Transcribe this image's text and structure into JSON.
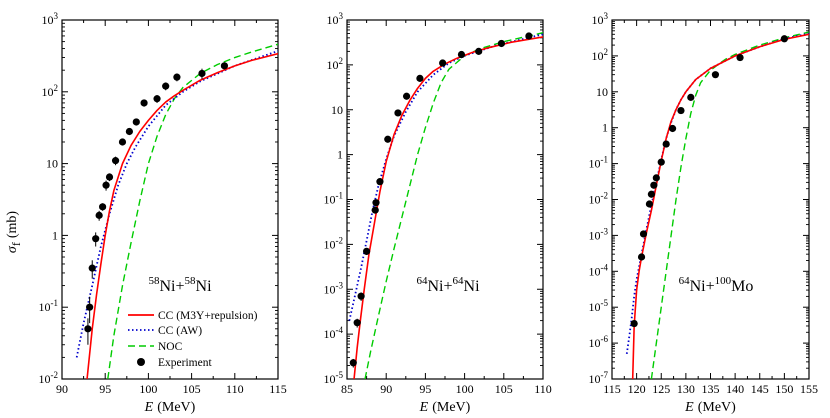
{
  "figure": {
    "ylabel_symbol": "σ",
    "ylabel_sub": "f",
    "ylabel_unit": "(mb)",
    "legend": {
      "placement": "lower-right of panel 1",
      "entries": [
        {
          "key": "cc_m3y",
          "label": "CC (M3Y+repulsion)",
          "color": "#ff0000",
          "style": "solid"
        },
        {
          "key": "cc_aw",
          "label": "CC (AW)",
          "color": "#0000cc",
          "style": "dotted"
        },
        {
          "key": "noc",
          "label": "NOC",
          "color": "#00cc00",
          "style": "dashed"
        },
        {
          "key": "exp",
          "label": "Experiment",
          "color": "#000000",
          "style": "marker"
        }
      ]
    }
  },
  "chart_data": [
    {
      "type": "line",
      "panel": 1,
      "system": {
        "a1": "58",
        "e1": "Ni+",
        "a2": "58",
        "e2": "Ni"
      },
      "xlabel_symbol": "E",
      "xlabel_unit": "(MeV)",
      "yscale": "log",
      "xlim": [
        90,
        115
      ],
      "ylim": [
        0.01,
        1000
      ],
      "xticks": [
        90,
        95,
        100,
        105,
        110,
        115
      ],
      "yticks": [
        0.01,
        0.1,
        1,
        10,
        100,
        1000
      ],
      "ytick_labels": [
        "10⁻²",
        "10⁻¹",
        "1",
        "10",
        "10²",
        "10³"
      ],
      "series": [
        {
          "name": "CC (M3Y+repulsion)",
          "key": "cc_m3y",
          "x": [
            92.9,
            93.5,
            94.0,
            94.5,
            95.0,
            95.5,
            96.0,
            97.0,
            98.0,
            99.0,
            100.0,
            101.0,
            102.0,
            103.0,
            104.0,
            106.0,
            108.0,
            110.0,
            112.0,
            115.0
          ],
          "y": [
            0.01,
            0.05,
            0.15,
            0.4,
            1.0,
            2.2,
            4.2,
            10,
            18,
            28,
            40,
            55,
            72,
            88,
            105,
            145,
            185,
            230,
            275,
            340
          ]
        },
        {
          "name": "CC (AW)",
          "key": "cc_aw",
          "x": [
            91.7,
            92.5,
            93.5,
            94.5,
            95.5,
            96.5,
            97.5,
            98.5,
            100.0,
            102.0,
            104.0,
            106.0,
            110.0,
            115.0
          ],
          "y": [
            0.02,
            0.06,
            0.2,
            0.7,
            2.0,
            5,
            10,
            17,
            33,
            65,
            100,
            140,
            230,
            370
          ]
        },
        {
          "name": "NOC",
          "key": "noc",
          "x": [
            95.3,
            96.0,
            97.0,
            98.0,
            99.0,
            100.0,
            101.0,
            102.0,
            103.0,
            104.0,
            106.0,
            108.0,
            110.0,
            112.0,
            115.0
          ],
          "y": [
            0.01,
            0.04,
            0.2,
            0.8,
            3.0,
            10,
            24,
            48,
            80,
            115,
            180,
            240,
            300,
            360,
            460
          ]
        },
        {
          "name": "Experiment",
          "key": "exp",
          "x": [
            93.0,
            93.2,
            93.5,
            93.9,
            94.3,
            94.7,
            95.1,
            95.5,
            96.2,
            97.0,
            97.8,
            98.6,
            99.5,
            101.0,
            102.0,
            103.3,
            106.2,
            108.8
          ],
          "y": [
            0.05,
            0.1,
            0.35,
            0.9,
            1.9,
            2.5,
            5,
            6.5,
            11,
            20,
            28,
            38,
            70,
            80,
            120,
            160,
            180,
            230
          ],
          "err": [
            0.02,
            0.04,
            0.1,
            0.2,
            0.3,
            0.3,
            0.8,
            0.8,
            1.5,
            2,
            3,
            4,
            8,
            10,
            15,
            20,
            30,
            25
          ]
        }
      ]
    },
    {
      "type": "line",
      "panel": 2,
      "system": {
        "a1": "64",
        "e1": "Ni+",
        "a2": "64",
        "e2": "Ni"
      },
      "xlabel_symbol": "E",
      "xlabel_unit": "(MeV)",
      "yscale": "log",
      "xlim": [
        85,
        110
      ],
      "ylim": [
        1e-05,
        1000
      ],
      "xticks": [
        85,
        90,
        95,
        100,
        105,
        110
      ],
      "yticks": [
        1e-05,
        0.0001,
        0.001,
        0.01,
        0.1,
        1,
        10,
        100,
        1000
      ],
      "ytick_labels": [
        "10⁻⁵",
        "10⁻⁴",
        "10⁻³",
        "10⁻²",
        "10⁻¹",
        "1",
        "10",
        "10²",
        "10³"
      ],
      "series": [
        {
          "name": "CC (M3Y+repulsion)",
          "key": "cc_m3y",
          "x": [
            85.9,
            86.3,
            86.7,
            87.2,
            87.8,
            88.5,
            89.2,
            90.0,
            91.0,
            92.0,
            93.0,
            94.0,
            95.0,
            96.0,
            97.5,
            99.0,
            101.0,
            103.0,
            106.0,
            110.0
          ],
          "y": [
            1e-05,
            5e-05,
            0.0002,
            0.001,
            0.006,
            0.03,
            0.15,
            0.7,
            2.8,
            7.5,
            16,
            30,
            50,
            72,
            105,
            140,
            190,
            240,
            320,
            420
          ]
        },
        {
          "name": "CC (AW)",
          "key": "cc_aw",
          "x": [
            85.3,
            86.0,
            86.8,
            87.5,
            88.2,
            89.0,
            90.0,
            91.0,
            92.5,
            94.0,
            96.0,
            98.0,
            100.0,
            104.0,
            110.0
          ],
          "y": [
            0.0002,
            0.0007,
            0.003,
            0.012,
            0.05,
            0.2,
            0.8,
            2.6,
            9,
            25,
            60,
            110,
            160,
            270,
            480
          ]
        },
        {
          "name": "NOC",
          "key": "noc",
          "x": [
            87.3,
            88.0,
            89.0,
            90.0,
            91.0,
            92.0,
            93.0,
            94.0,
            95.0,
            96.0,
            97.0,
            98.0,
            100.0,
            102.0,
            105.0,
            110.0
          ],
          "y": [
            1e-05,
            4e-05,
            0.00025,
            0.0015,
            0.008,
            0.04,
            0.2,
            1.0,
            4,
            14,
            40,
            80,
            160,
            230,
            330,
            520
          ]
        },
        {
          "name": "Experiment",
          "key": "exp",
          "x": [
            85.8,
            86.3,
            86.8,
            87.5,
            88.6,
            88.7,
            89.2,
            90.2,
            91.5,
            92.6,
            94.3,
            97.2,
            99.6,
            101.8,
            104.7,
            108.2
          ],
          "y": [
            2.3e-05,
            0.00018,
            0.0007,
            0.007,
            0.058,
            0.085,
            0.25,
            2.2,
            8.5,
            20,
            50,
            110,
            170,
            200,
            300,
            440
          ],
          "err": [
            5e-06,
            4e-05,
            0.00015,
            0.0012,
            0.008,
            0.012,
            0.03,
            0.2,
            0.8,
            2,
            5,
            10,
            15,
            20,
            30,
            40
          ]
        }
      ]
    },
    {
      "type": "line",
      "panel": 3,
      "system": {
        "a1": "64",
        "e1": "Ni+",
        "a2": "100",
        "e2": "Mo"
      },
      "xlabel_symbol": "E",
      "xlabel_unit": "(MeV)",
      "yscale": "log",
      "xlim": [
        115,
        155
      ],
      "ylim": [
        1e-07,
        1000
      ],
      "xticks": [
        115,
        120,
        125,
        130,
        135,
        140,
        145,
        150,
        155
      ],
      "yticks": [
        1e-07,
        1e-06,
        1e-05,
        0.0001,
        0.001,
        0.01,
        0.1,
        1,
        10,
        100,
        1000
      ],
      "ytick_labels": [
        "10⁻⁷",
        "10⁻⁶",
        "10⁻⁵",
        "10⁻⁴",
        "10⁻³",
        "10⁻²",
        "10⁻¹",
        "1",
        "10",
        "10²",
        "10³"
      ],
      "series": [
        {
          "name": "CC (M3Y+repulsion)",
          "key": "cc_m3y",
          "x": [
            119.2,
            119.5,
            120.0,
            120.5,
            121.0,
            122.0,
            123.0,
            124.0,
            125.0,
            126.0,
            127.0,
            128.0,
            129.0,
            130.0,
            132.0,
            135.0,
            140.0,
            145.0,
            150.0,
            155.0
          ],
          "y": [
            1e-07,
            3e-06,
            3e-05,
            0.0001,
            0.00025,
            0.0012,
            0.005,
            0.025,
            0.12,
            0.5,
            1.5,
            3.2,
            6,
            10,
            22,
            45,
            100,
            180,
            290,
            400
          ]
        },
        {
          "name": "CC (AW)",
          "key": "cc_aw",
          "x": [
            118.0,
            118.5,
            119.0,
            119.5,
            120.0,
            121.0,
            122.0,
            123.0,
            124.0,
            125.0,
            126.0,
            127.0,
            128.0,
            129.0,
            130.0,
            132.0,
            135.0,
            140.0,
            145.0,
            150.0,
            155.0
          ],
          "y": [
            5e-07,
            1.5e-06,
            5e-06,
            2e-05,
            6e-05,
            0.0003,
            0.0015,
            0.007,
            0.03,
            0.13,
            0.5,
            1.4,
            3.2,
            6,
            10,
            22,
            45,
            100,
            180,
            300,
            420
          ]
        },
        {
          "name": "NOC",
          "key": "noc",
          "x": [
            123.0,
            124.0,
            125.0,
            126.0,
            127.0,
            128.0,
            129.0,
            130.0,
            131.0,
            132.0,
            133.0,
            135.0,
            138.0,
            140.0,
            145.0,
            150.0,
            155.0
          ],
          "y": [
            1e-07,
            1e-06,
            1e-05,
            0.0001,
            0.001,
            0.01,
            0.08,
            0.5,
            2.5,
            8,
            18,
            40,
            80,
            110,
            200,
            320,
            460
          ]
        },
        {
          "name": "Experiment",
          "key": "exp",
          "x": [
            119.5,
            121.0,
            121.4,
            122.6,
            123.0,
            123.5,
            124.0,
            125.0,
            126.0,
            127.3,
            129.0,
            131.0,
            136.0,
            141.0,
            150.0
          ],
          "y": [
            3.5e-06,
            0.00025,
            0.0011,
            0.0075,
            0.014,
            0.025,
            0.04,
            0.11,
            0.35,
            0.95,
            3,
            7,
            30,
            90,
            300
          ],
          "err": [
            0,
            0,
            0,
            0,
            0,
            0,
            0,
            0,
            0,
            0,
            0,
            0,
            0,
            0,
            0
          ]
        }
      ]
    }
  ]
}
